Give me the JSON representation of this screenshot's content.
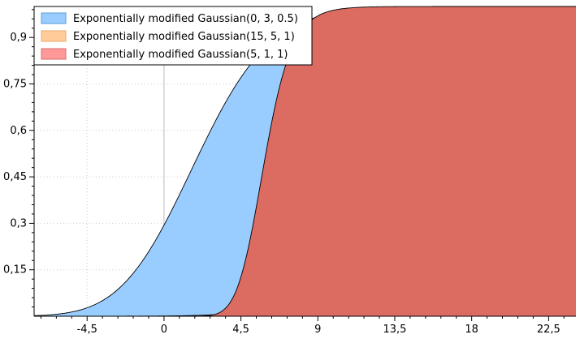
{
  "chart_data": {
    "type": "area",
    "title": "",
    "xlabel": "",
    "ylabel": "",
    "xlim": [
      -7.6,
      24.1
    ],
    "ylim": [
      0,
      1.0
    ],
    "x_ticks": [
      -4.5,
      0,
      4.5,
      9,
      13.5,
      18,
      22.5
    ],
    "x_tick_labels": [
      "-4,5",
      "0",
      "4,5",
      "9",
      "13,5",
      "18",
      "22,5"
    ],
    "y_ticks": [
      0.15,
      0.3,
      0.45,
      0.6,
      0.75,
      0.9
    ],
    "y_tick_labels": [
      "0,15",
      "0,3",
      "0,45",
      "0,6",
      "0,75",
      "0,9"
    ],
    "grid": true,
    "legend_position": "top-left",
    "series": [
      {
        "name": "Exponentially modified Gaussian(0, 3, 0.5)",
        "mu": 0,
        "sigma": 3,
        "lambda": 0.5,
        "color": "#99ccff",
        "fill_opacity": 1.0
      },
      {
        "name": "Exponentially modified Gaussian(15, 5, 1)",
        "mu": 15,
        "sigma": 5,
        "lambda": 1,
        "color": "#ffcc99",
        "fill_opacity": 1.0
      },
      {
        "name": "Exponentially modified Gaussian(5, 1, 1)",
        "mu": 5,
        "sigma": 1,
        "lambda": 1,
        "color": "#ff9999",
        "fill_opacity": 1.0
      }
    ],
    "render_colors": [
      "#99ccff",
      "#c27e9a",
      "#dc6b61"
    ]
  }
}
